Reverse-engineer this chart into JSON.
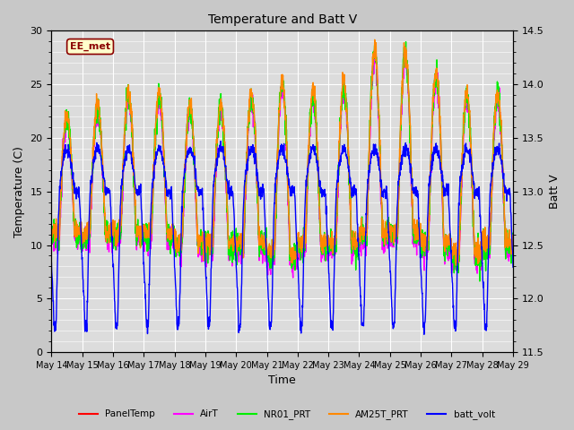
{
  "title": "Temperature and Batt V",
  "xlabel": "Time",
  "ylabel_left": "Temperature (C)",
  "ylabel_right": "Batt V",
  "ylim_left": [
    0,
    30
  ],
  "ylim_right": [
    11.5,
    14.5
  ],
  "annotation_text": "EE_met",
  "background_color": "#dcdcdc",
  "fig_bg_color": "#c8c8c8",
  "legend_entries": [
    "PanelTemp",
    "AirT",
    "NR01_PRT",
    "AM25T_PRT",
    "batt_volt"
  ],
  "legend_colors": [
    "#ff0000",
    "#ff00ff",
    "#00ee00",
    "#ff8800",
    "#0000ff"
  ],
  "line_widths": [
    1.0,
    1.0,
    1.0,
    1.0,
    1.0
  ],
  "x_tick_labels": [
    "May 14",
    "May 15",
    "May 16",
    "May 17",
    "May 18",
    "May 19",
    "May 20",
    "May 21",
    "May 22",
    "May 23",
    "May 24",
    "May 25",
    "May 26",
    "May 27",
    "May 28",
    "May 29"
  ],
  "num_points": 2000
}
